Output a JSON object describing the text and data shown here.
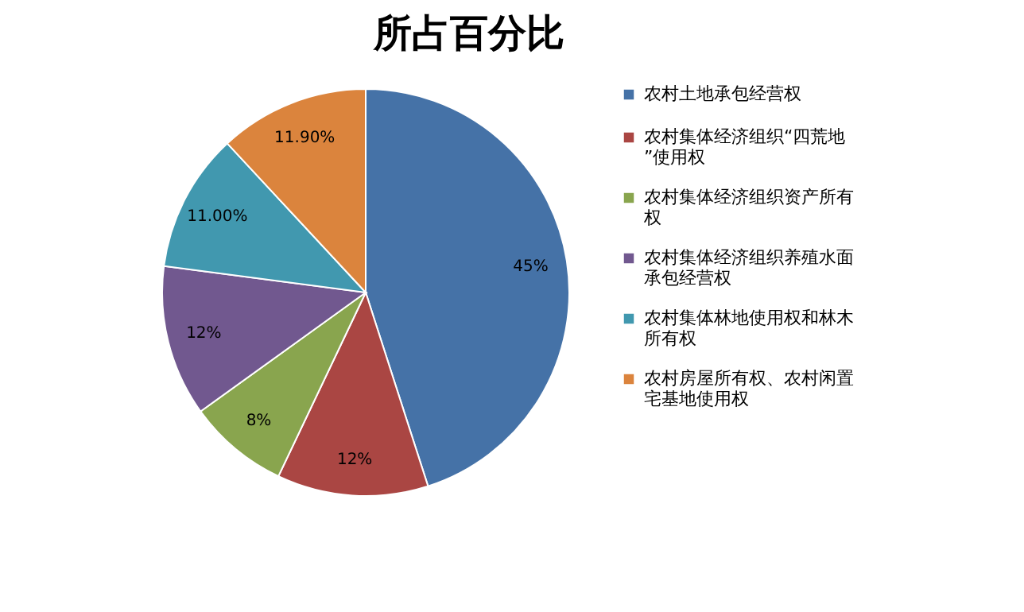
{
  "chart_data": {
    "type": "pie",
    "title": "所占百分比",
    "categories": [
      "农村土地承包经营权",
      "农村集体经济组织“四荒地”使用权",
      "农村集体经济组织资产所有权",
      "农村集体经济组织养殖水面承包经营权",
      "农村集体林地使用权和林木所有权",
      "农村房屋所有权、农村闲置宅基地使用权"
    ],
    "values": [
      45,
      12,
      8,
      12,
      11.0,
      11.9
    ],
    "value_labels": [
      "45%",
      "12%",
      "8%",
      "12%",
      "11.00%",
      "11.90%"
    ],
    "colors": [
      "#4572a7",
      "#aa4643",
      "#89a54e",
      "#71588f",
      "#4198af",
      "#db843d"
    ],
    "legend": "right"
  }
}
